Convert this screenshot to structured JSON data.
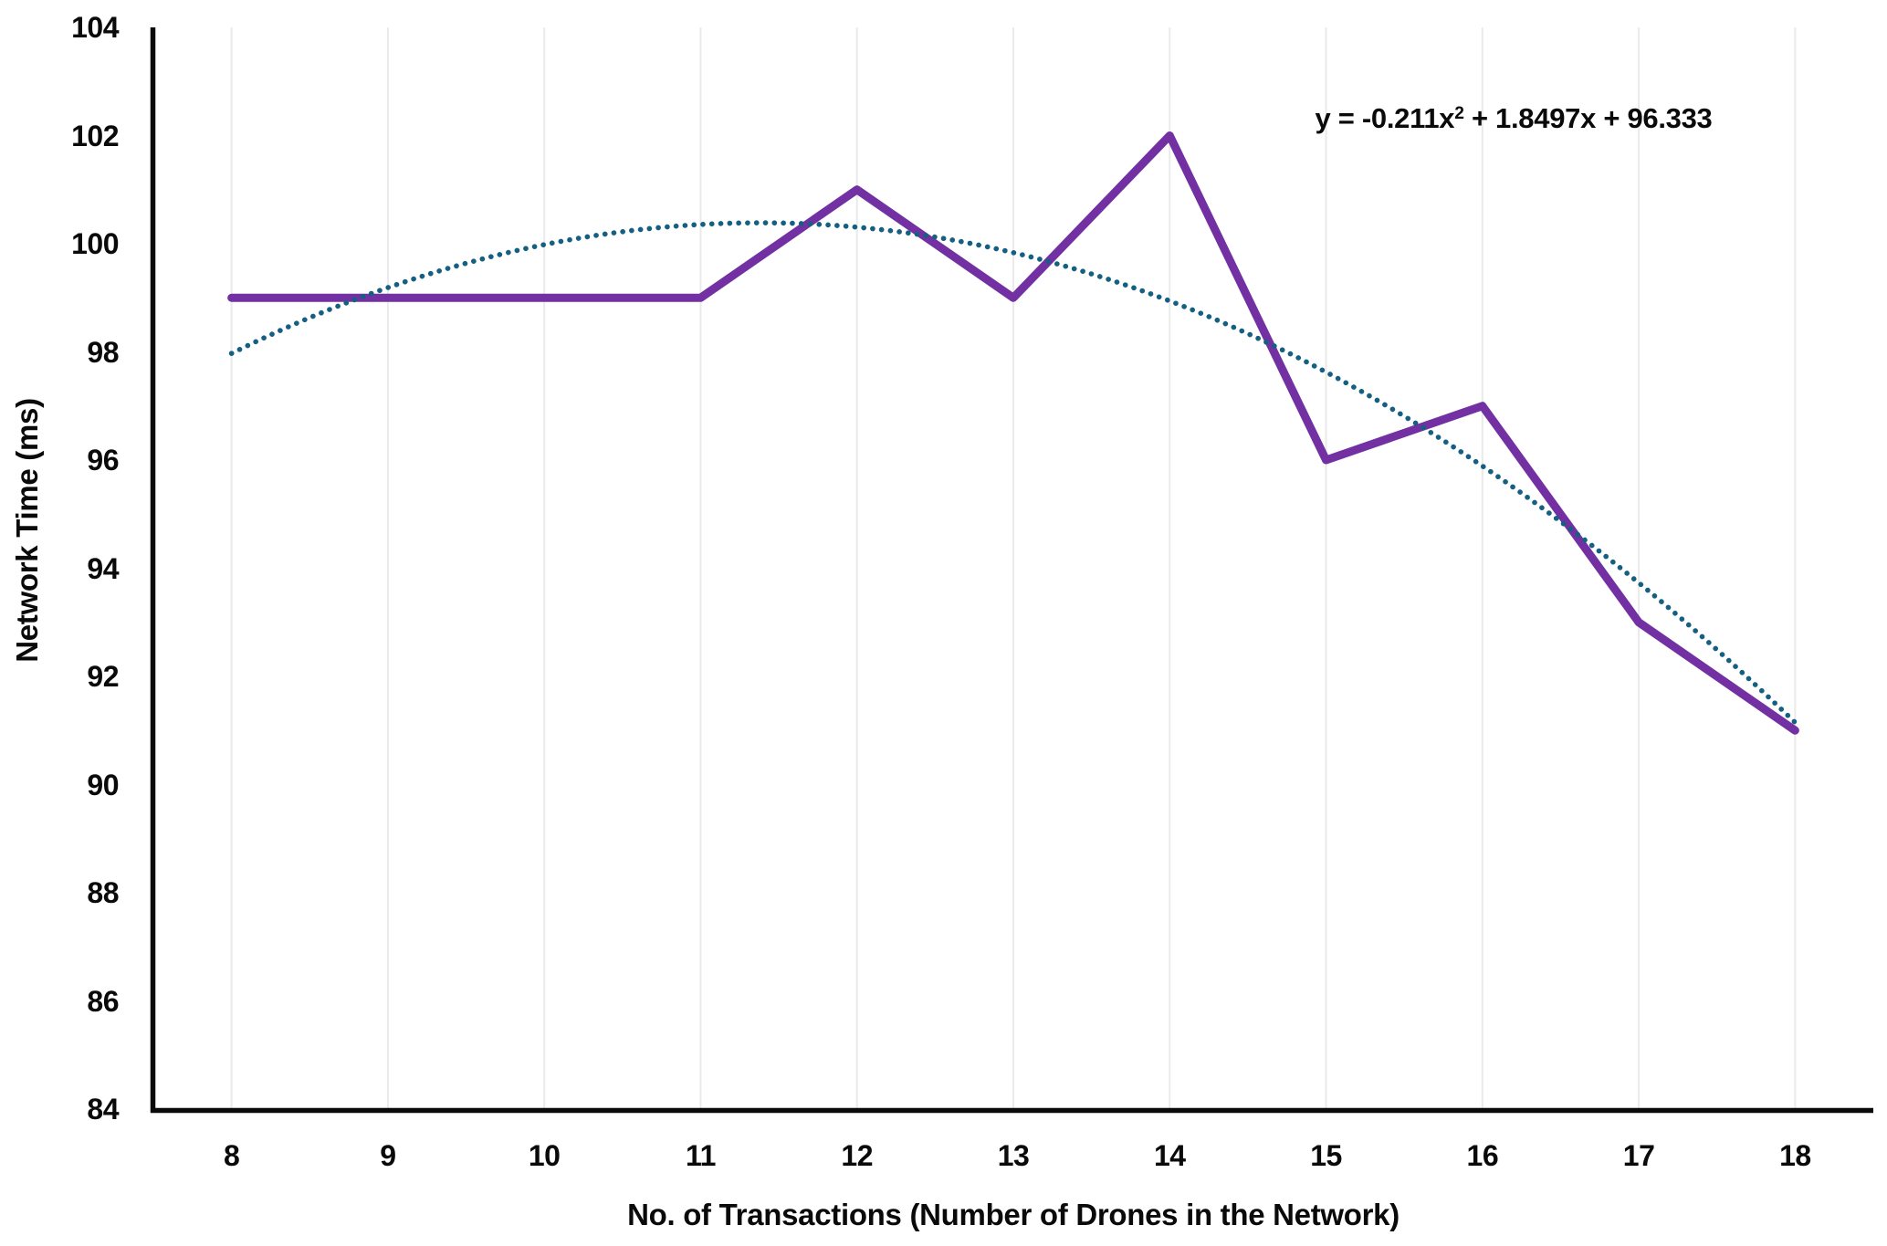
{
  "chart_data": {
    "type": "line",
    "title": "",
    "xlabel": "No. of Transactions (Number of Drones in the Network)",
    "ylabel": "Network Time (ms)",
    "categories": [
      8,
      9,
      10,
      11,
      12,
      13,
      14,
      15,
      16,
      17,
      18
    ],
    "series": [
      {
        "name": "Network Time (ms)",
        "color": "#7230A3",
        "line_width": 9,
        "values": [
          99,
          99,
          99,
          99,
          101,
          99,
          102,
          96,
          97,
          93,
          91
        ]
      }
    ],
    "trendline": {
      "kind": "polynomial_order2",
      "equation_text": "y = -0.211x² + 1.8497x + 96.333",
      "a": -0.211,
      "b": 1.8497,
      "c": 96.333,
      "t_domain": [
        1,
        11
      ],
      "color": "#156082",
      "style": "dotted"
    },
    "ylim": [
      84,
      104
    ],
    "ytick_step": 2,
    "xtick_labels": [
      "8",
      "9",
      "10",
      "11",
      "12",
      "13",
      "14",
      "15",
      "16",
      "17",
      "18"
    ],
    "ytick_labels": [
      "84",
      "86",
      "88",
      "90",
      "92",
      "94",
      "96",
      "98",
      "100",
      "102",
      "104"
    ],
    "grid": "vertical-only",
    "gridline_color": "#EAEAEA",
    "axis_color": "#0A0A0A",
    "legend": "none"
  },
  "equation": {
    "base1": "y = -0.211x",
    "exponent": "2",
    "base2": " + 1.8497x + 96.333"
  }
}
